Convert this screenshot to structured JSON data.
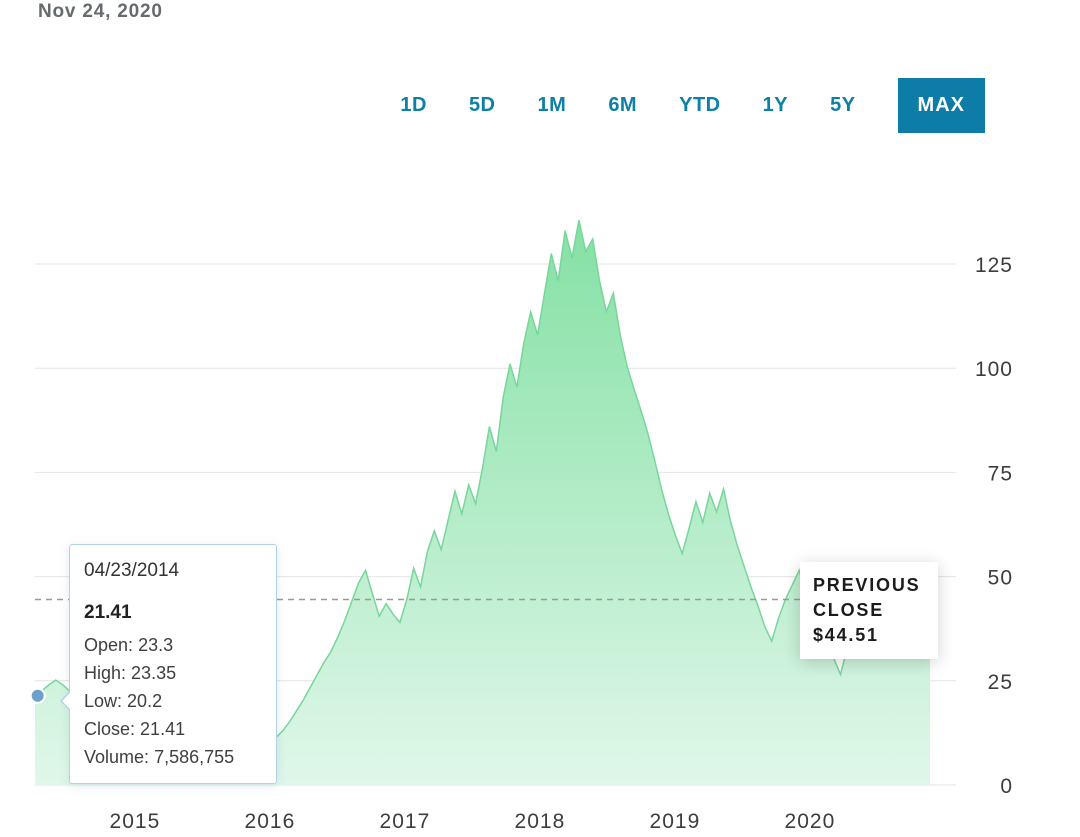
{
  "header": {
    "date": "Nov 24, 2020"
  },
  "range_tabs": {
    "items": [
      {
        "label": "1D",
        "active": false
      },
      {
        "label": "5D",
        "active": false
      },
      {
        "label": "1M",
        "active": false
      },
      {
        "label": "6M",
        "active": false
      },
      {
        "label": "YTD",
        "active": false
      },
      {
        "label": "1Y",
        "active": false
      },
      {
        "label": "5Y",
        "active": false
      },
      {
        "label": "MAX",
        "active": true
      }
    ]
  },
  "tooltip": {
    "date": "04/23/2014",
    "price": "21.41",
    "rows": [
      {
        "label": "Open:",
        "value": "23.3"
      },
      {
        "label": "High:",
        "value": "23.35"
      },
      {
        "label": "Low:",
        "value": "20.2"
      },
      {
        "label": "Close:",
        "value": "21.41"
      },
      {
        "label": "Volume:",
        "value": "7,586,755"
      }
    ]
  },
  "previous_close": {
    "label": "PREVIOUS CLOSE",
    "value": "$44.51"
  },
  "chart_data": {
    "type": "area",
    "x_start": 2014.26,
    "x_end": 2020.89,
    "xlim": [
      2014.26,
      2020.89
    ],
    "ylim": [
      0,
      140
    ],
    "y_ticks": [
      0,
      25,
      50,
      75,
      100,
      125
    ],
    "x_ticks": [
      "2015",
      "2016",
      "2017",
      "2018",
      "2019",
      "2020"
    ],
    "grid": true,
    "legend": "none",
    "previous_close_value": 44.51,
    "marker": {
      "x": 2014.28,
      "value": 21.41
    },
    "values": [
      21.4,
      22.6,
      24,
      25.2,
      24.1,
      22.6,
      21,
      19.4,
      18.2,
      17.3,
      16.4,
      15.8,
      15.2,
      14.8,
      14.4,
      15.1,
      14.2,
      15.6,
      16.2,
      15.3,
      14.1,
      13.2,
      12.4,
      11.6,
      10.8,
      10.2,
      11,
      11.8,
      11.2,
      10.4,
      9.8,
      10.6,
      10.1,
      9.6,
      10.2,
      11.4,
      13,
      15.2,
      17.8,
      20.5,
      23.5,
      26.5,
      29.5,
      32,
      35.5,
      39.5,
      44,
      48.5,
      51.5,
      46,
      40.5,
      43.5,
      41,
      39,
      44.5,
      52,
      47.5,
      56,
      61,
      56.5,
      63.5,
      70.5,
      65,
      72,
      67.5,
      76,
      86,
      80,
      93,
      101,
      95.5,
      106,
      113.5,
      108,
      118,
      127.5,
      121,
      133,
      126.5,
      135.5,
      128,
      131,
      121,
      113.5,
      118,
      108,
      100.5,
      95,
      90,
      84.5,
      78,
      71,
      65,
      60,
      55.5,
      61.5,
      68,
      63,
      70,
      65.5,
      71,
      63.5,
      57.5,
      52.5,
      47.5,
      43,
      38,
      34.5,
      40,
      44.5,
      48,
      51.5,
      45.5,
      41,
      44,
      38.5,
      30.5,
      26.5,
      33,
      38.5,
      41.5,
      39,
      36,
      34,
      37,
      34.5,
      32,
      34.5,
      32.5,
      30.5,
      31.5
    ],
    "colors": {
      "area_top": "#82e0a2",
      "area_bottom": "#e0f7ea",
      "line": "#77d69a",
      "grid": "#e4e4e4",
      "axis_text": "#3d3d3d",
      "dashed": "#999999",
      "marker": "#6ea1c8",
      "accent": "#0d7ca6"
    }
  }
}
